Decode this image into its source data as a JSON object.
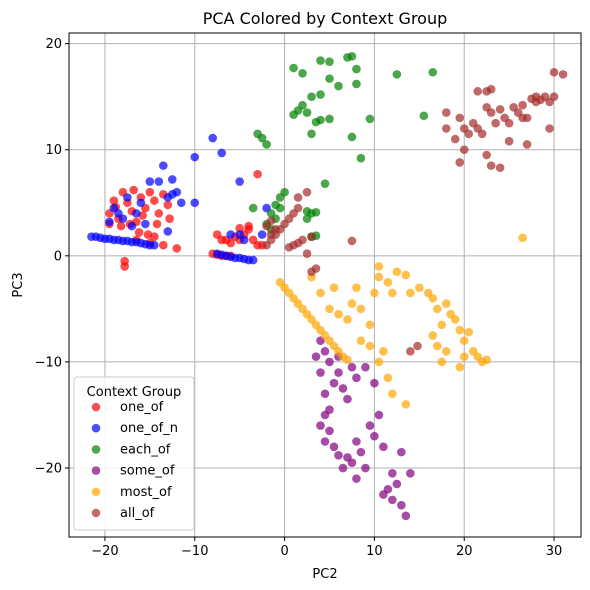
{
  "chart_data": {
    "type": "scatter",
    "title": "PCA Colored by Context Group",
    "xlabel": "PC2",
    "ylabel": "PC3",
    "xlim": [
      -24,
      33
    ],
    "ylim": [
      -26.5,
      21
    ],
    "xticks": [
      -20,
      -10,
      0,
      10,
      20,
      30
    ],
    "yticks": [
      -20,
      -10,
      0,
      10,
      20
    ],
    "xtick_labels": [
      "−20",
      "−10",
      "0",
      "10",
      "20",
      "30"
    ],
    "ytick_labels": [
      "−20",
      "−10",
      "0",
      "10",
      "20"
    ],
    "grid": true,
    "legend": {
      "title": "Context Group",
      "placement": "lower-left"
    },
    "series": [
      {
        "name": "one_of",
        "color": "#ff0000",
        "points": [
          [
            -19.5,
            4.0
          ],
          [
            -19,
            5.2
          ],
          [
            -18.5,
            3.5
          ],
          [
            -18,
            6.0
          ],
          [
            -17.5,
            5.0
          ],
          [
            -17,
            4.2
          ],
          [
            -16.8,
            6.2
          ],
          [
            -16.5,
            3.2
          ],
          [
            -16,
            5.5
          ],
          [
            -15.5,
            4.5
          ],
          [
            -15,
            6.0
          ],
          [
            -14.5,
            5.2
          ],
          [
            -14.2,
            3.0
          ],
          [
            -14,
            4.0
          ],
          [
            -13.5,
            5.8
          ],
          [
            -18.2,
            2.8
          ],
          [
            -17.2,
            3.0
          ],
          [
            -16.2,
            2.2
          ],
          [
            -15.2,
            2.0
          ],
          [
            -14.5,
            1.8
          ],
          [
            -17.8,
            -0.5
          ],
          [
            -17.8,
            -1.0
          ],
          [
            -12,
            0.7
          ],
          [
            -15,
            1.2
          ],
          [
            -13.5,
            1.0
          ],
          [
            -8,
            0.2
          ],
          [
            -7.5,
            0.1
          ],
          [
            -7,
            0.0
          ],
          [
            -6.5,
            0.0
          ],
          [
            -6,
            0.0
          ],
          [
            -7.5,
            2.0
          ],
          [
            -7,
            1.5
          ],
          [
            -6.5,
            1.5
          ],
          [
            -6,
            1.2
          ],
          [
            -5.5,
            1.8
          ],
          [
            -5,
            1.5
          ],
          [
            -4.5,
            2.0
          ],
          [
            -4,
            2.5
          ],
          [
            -5,
            2.6
          ],
          [
            -4,
            2.8
          ],
          [
            -3,
            7.7
          ],
          [
            -3.5,
            1.5
          ],
          [
            -3,
            1.0
          ],
          [
            -2.5,
            1.0
          ],
          [
            -19.5,
            3.0
          ],
          [
            -18.8,
            4.6
          ],
          [
            -15.8,
            3.8
          ],
          [
            -13,
            4.8
          ],
          [
            -12.8,
            3.5
          ],
          [
            -16.5,
            1.5
          ]
        ]
      },
      {
        "name": "one_of_n",
        "color": "#0000ff",
        "points": [
          [
            -21.5,
            1.8
          ],
          [
            -21,
            1.8
          ],
          [
            -20.5,
            1.7
          ],
          [
            -20,
            1.6
          ],
          [
            -19.5,
            1.6
          ],
          [
            -19,
            1.5
          ],
          [
            -18.5,
            1.5
          ],
          [
            -18,
            1.4
          ],
          [
            -17.5,
            1.4
          ],
          [
            -17,
            1.3
          ],
          [
            -16.5,
            1.3
          ],
          [
            -16,
            1.2
          ],
          [
            -15.5,
            1.1
          ],
          [
            -15,
            1.0
          ],
          [
            -14.5,
            1.0
          ],
          [
            -19.5,
            3.2
          ],
          [
            -19,
            4.5
          ],
          [
            -18.5,
            4.0
          ],
          [
            -18,
            3.5
          ],
          [
            -17,
            2.8
          ],
          [
            -16.5,
            4.0
          ],
          [
            -15.5,
            3.0
          ],
          [
            -15,
            7.0
          ],
          [
            -14,
            7.0
          ],
          [
            -13.5,
            8.5
          ],
          [
            -13,
            5.5
          ],
          [
            -12.5,
            5.8
          ],
          [
            -12,
            6.0
          ],
          [
            -12.5,
            7.2
          ],
          [
            -11.5,
            5.0
          ],
          [
            -13,
            2.3
          ],
          [
            -10,
            9.3
          ],
          [
            -10,
            5.0
          ],
          [
            -8,
            11.1
          ],
          [
            -7,
            9.7
          ],
          [
            -5,
            7.0
          ],
          [
            -7.5,
            0.2
          ],
          [
            -7,
            0.1
          ],
          [
            -6.5,
            0.0
          ],
          [
            -6,
            -0.1
          ],
          [
            -5.5,
            -0.2
          ],
          [
            -5,
            -0.2
          ],
          [
            -4.5,
            -0.3
          ],
          [
            -4,
            -0.4
          ],
          [
            -3.5,
            -0.4
          ],
          [
            -6,
            2.0
          ],
          [
            -5,
            2.0
          ],
          [
            -4.5,
            1.5
          ],
          [
            -2.5,
            2.0
          ],
          [
            -2,
            4.5
          ],
          [
            -17.5,
            5.5
          ],
          [
            -16,
            5.0
          ]
        ]
      },
      {
        "name": "each_of",
        "color": "#008000",
        "points": [
          [
            1,
            17.7
          ],
          [
            2,
            17.2
          ],
          [
            3,
            15.0
          ],
          [
            4,
            18.4
          ],
          [
            5,
            18.3
          ],
          [
            7,
            18.7
          ],
          [
            7.5,
            18.8
          ],
          [
            8,
            17.6
          ],
          [
            8,
            16.2
          ],
          [
            5,
            16.7
          ],
          [
            6,
            16.0
          ],
          [
            4,
            15.2
          ],
          [
            2,
            14.2
          ],
          [
            1.5,
            13.7
          ],
          [
            1,
            13.3
          ],
          [
            2.5,
            13.5
          ],
          [
            3.5,
            12.6
          ],
          [
            4,
            12.8
          ],
          [
            5,
            12.9
          ],
          [
            3,
            11.5
          ],
          [
            7.5,
            11.2
          ],
          [
            8.5,
            9.2
          ],
          [
            9.5,
            12.9
          ],
          [
            12.5,
            17.1
          ],
          [
            16.5,
            17.3
          ],
          [
            15.5,
            13.2
          ],
          [
            -3,
            11.5
          ],
          [
            -2.5,
            11.1
          ],
          [
            -2,
            10.5
          ],
          [
            -3.5,
            4.5
          ],
          [
            -2,
            3.0
          ],
          [
            -1.5,
            4.0
          ],
          [
            -1,
            4.8
          ],
          [
            -0.5,
            5.5
          ],
          [
            0,
            6.0
          ],
          [
            -1,
            3.5
          ],
          [
            -1.5,
            2.5
          ],
          [
            2.5,
            4.2
          ],
          [
            3,
            4.0
          ],
          [
            3.5,
            4.1
          ],
          [
            2.5,
            3.5
          ],
          [
            3,
            1.8
          ],
          [
            3.5,
            1.9
          ],
          [
            4.5,
            6.8
          ],
          [
            -0.5,
            4.5
          ]
        ]
      },
      {
        "name": "some_of",
        "color": "#800080",
        "points": [
          [
            4,
            -8.0
          ],
          [
            4.5,
            -9.0
          ],
          [
            5,
            -10.0
          ],
          [
            4,
            -11.0
          ],
          [
            5.5,
            -12.0
          ],
          [
            4.5,
            -13.0
          ],
          [
            5,
            -14.5
          ],
          [
            4.5,
            -15.0
          ],
          [
            4,
            -16.0
          ],
          [
            5,
            -16.5
          ],
          [
            4.5,
            -17.5
          ],
          [
            5.5,
            -18.0
          ],
          [
            6,
            -18.8
          ],
          [
            7,
            -19.0
          ],
          [
            6.5,
            -20.0
          ],
          [
            7.5,
            -19.5
          ],
          [
            8,
            -17.5
          ],
          [
            8.5,
            -18.5
          ],
          [
            9,
            -20.0
          ],
          [
            8,
            -21.0
          ],
          [
            9.5,
            -16.0
          ],
          [
            10,
            -17.0
          ],
          [
            11,
            -18.0
          ],
          [
            12,
            -20.5
          ],
          [
            11.5,
            -22.0
          ],
          [
            12,
            -23.0
          ],
          [
            13,
            -23.5
          ],
          [
            13.5,
            -24.5
          ],
          [
            11,
            -22.5
          ],
          [
            12.5,
            -21.5
          ],
          [
            6,
            -11.0
          ],
          [
            6.5,
            -12.5
          ],
          [
            7,
            -13.5
          ],
          [
            8,
            -11.5
          ],
          [
            7.5,
            -10.5
          ],
          [
            10,
            -12.0
          ],
          [
            9,
            -10.5
          ],
          [
            6,
            -9.5
          ],
          [
            14,
            -20.5
          ],
          [
            13,
            -18.5
          ],
          [
            3.5,
            -9.5
          ],
          [
            10.5,
            -15.0
          ]
        ]
      },
      {
        "name": "most_of",
        "color": "#ffa500",
        "points": [
          [
            -0.5,
            -2.5
          ],
          [
            0,
            -3.0
          ],
          [
            0.5,
            -3.5
          ],
          [
            1,
            -4.0
          ],
          [
            1.5,
            -4.5
          ],
          [
            2,
            -5.0
          ],
          [
            2.5,
            -5.5
          ],
          [
            3,
            -6.0
          ],
          [
            3.5,
            -6.5
          ],
          [
            4,
            -7.0
          ],
          [
            4.5,
            -7.5
          ],
          [
            5,
            -8.0
          ],
          [
            5.5,
            -8.5
          ],
          [
            6,
            -9.0
          ],
          [
            6.5,
            -9.5
          ],
          [
            7,
            -9.8
          ],
          [
            3,
            -2.0
          ],
          [
            4,
            -3.5
          ],
          [
            5,
            -5.0
          ],
          [
            5.5,
            -3.0
          ],
          [
            6,
            -5.5
          ],
          [
            7,
            -6.0
          ],
          [
            7.5,
            -4.5
          ],
          [
            8,
            -3.0
          ],
          [
            8.5,
            -5.0
          ],
          [
            9.5,
            -6.5
          ],
          [
            10,
            -3.5
          ],
          [
            10.5,
            -2.0
          ],
          [
            10.5,
            -1.0
          ],
          [
            11.5,
            -2.5
          ],
          [
            12,
            -3.5
          ],
          [
            12.5,
            -1.5
          ],
          [
            13.5,
            -1.8
          ],
          [
            14,
            -3.5
          ],
          [
            15,
            -3.0
          ],
          [
            16,
            -3.5
          ],
          [
            16.5,
            -4.0
          ],
          [
            17,
            -5.0
          ],
          [
            17.5,
            -6.5
          ],
          [
            18,
            -4.5
          ],
          [
            18.5,
            -5.5
          ],
          [
            19,
            -6.0
          ],
          [
            19.5,
            -7.0
          ],
          [
            20,
            -8.0
          ],
          [
            20.5,
            -7.2
          ],
          [
            21,
            -9.0
          ],
          [
            21.5,
            -9.5
          ],
          [
            22,
            -10.0
          ],
          [
            22.5,
            -9.8
          ],
          [
            19.5,
            -10.5
          ],
          [
            18,
            -9.0
          ],
          [
            17,
            -8.5
          ],
          [
            16.5,
            -7.5
          ],
          [
            17.5,
            -10.0
          ],
          [
            20,
            -9.5
          ],
          [
            26.5,
            1.7
          ],
          [
            11,
            -9.0
          ],
          [
            10.5,
            -10.0
          ],
          [
            11.5,
            -11.5
          ],
          [
            12,
            -13.0
          ],
          [
            13.5,
            -14.0
          ],
          [
            9.5,
            -8.5
          ],
          [
            8.5,
            -8.0
          ]
        ]
      },
      {
        "name": "all_of",
        "color": "#a52a2a",
        "points": [
          [
            18,
            13.5
          ],
          [
            18,
            12.0
          ],
          [
            19,
            11.0
          ],
          [
            19.5,
            13.0
          ],
          [
            20,
            12.0
          ],
          [
            20.5,
            11.5
          ],
          [
            21,
            12.5
          ],
          [
            21.5,
            12.0
          ],
          [
            22,
            11.5
          ],
          [
            22.5,
            14.0
          ],
          [
            23,
            13.5
          ],
          [
            23.5,
            12.5
          ],
          [
            24,
            13.8
          ],
          [
            24.5,
            13.0
          ],
          [
            25,
            12.5
          ],
          [
            25.5,
            14.0
          ],
          [
            26,
            13.5
          ],
          [
            26.5,
            14.2
          ],
          [
            27,
            13.0
          ],
          [
            27.5,
            14.8
          ],
          [
            28,
            14.5
          ],
          [
            28.5,
            14.7
          ],
          [
            29,
            15.0
          ],
          [
            29.5,
            14.5
          ],
          [
            30,
            15.0
          ],
          [
            30,
            17.3
          ],
          [
            31,
            17.1
          ],
          [
            27,
            10.5
          ],
          [
            25,
            10.8
          ],
          [
            29.5,
            12.0
          ],
          [
            23,
            15.7
          ],
          [
            21.5,
            15.5
          ],
          [
            22.5,
            15.5
          ],
          [
            20,
            10.0
          ],
          [
            19.5,
            8.8
          ],
          [
            23,
            8.5
          ],
          [
            24,
            8.3
          ],
          [
            22.5,
            9.5
          ],
          [
            28,
            15.0
          ],
          [
            26.5,
            13.0
          ],
          [
            -2,
            1.0
          ],
          [
            -1.5,
            1.5
          ],
          [
            -1,
            2.0
          ],
          [
            -0.5,
            2.5
          ],
          [
            0,
            3.0
          ],
          [
            0.5,
            3.5
          ],
          [
            1,
            4.0
          ],
          [
            1.5,
            4.5
          ],
          [
            -1.5,
            2.0
          ],
          [
            -1,
            2.5
          ],
          [
            0.5,
            0.8
          ],
          [
            1,
            1.0
          ],
          [
            1.5,
            1.2
          ],
          [
            2,
            1.5
          ],
          [
            3,
            1.8
          ],
          [
            1.5,
            5.5
          ],
          [
            2.5,
            6.0
          ],
          [
            2.5,
            0.2
          ],
          [
            3.5,
            -1.2
          ],
          [
            3,
            -1.5
          ],
          [
            7.5,
            1.4
          ],
          [
            -2,
            2.8
          ],
          [
            -1.5,
            3.3
          ],
          [
            14.8,
            -8.5
          ],
          [
            14,
            -9.0
          ]
        ]
      }
    ]
  }
}
